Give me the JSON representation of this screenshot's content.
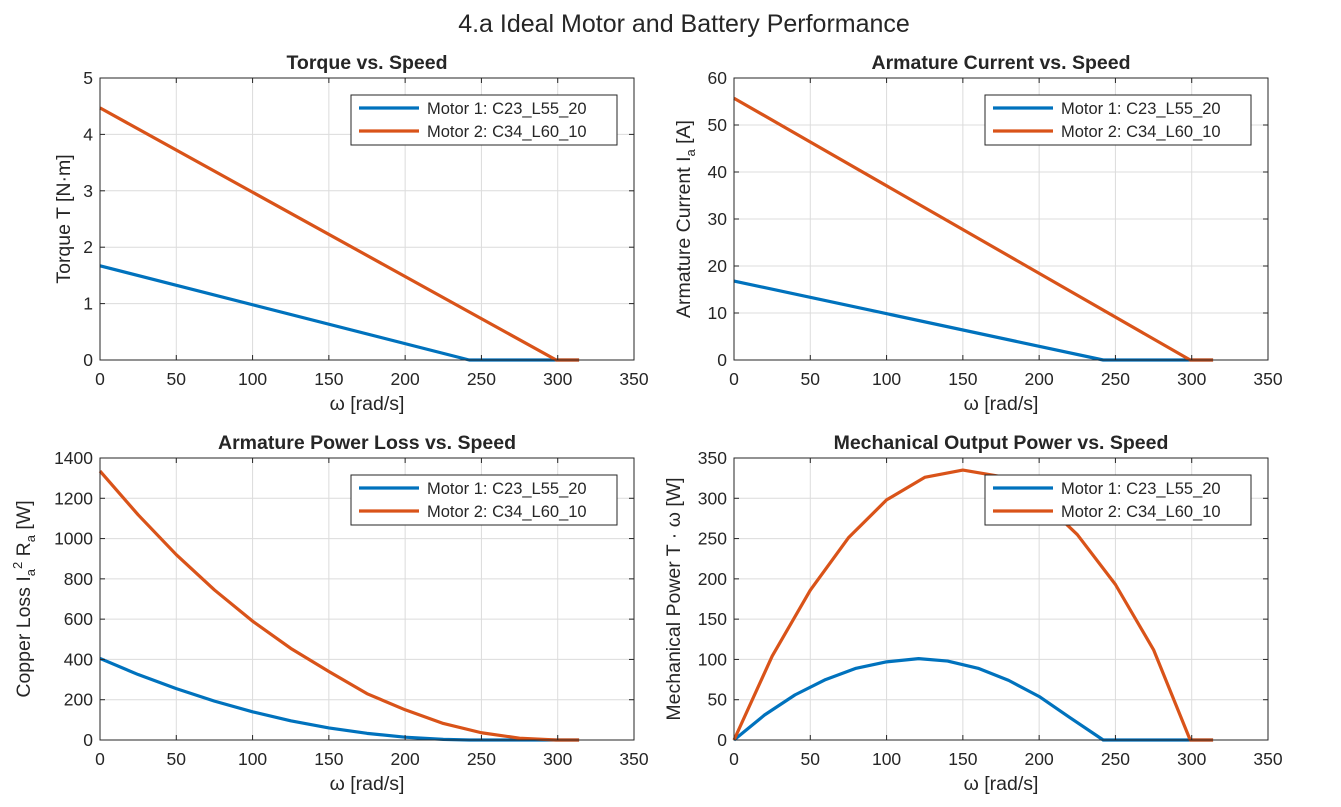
{
  "figure": {
    "suptitle": "4.a  Ideal Motor and Battery Performance",
    "series_colors": [
      "#0072BD",
      "#D95319"
    ],
    "legend": [
      "Motor  1:  C23_L55_20",
      "Motor  2:  C34_L60_10"
    ]
  },
  "chart_data": [
    {
      "type": "line",
      "title": "Torque vs. Speed",
      "xlabel": "ω   [rad/s]",
      "ylabel": "Torque  T  [N·m]",
      "xlim": [
        0,
        350
      ],
      "ylim": [
        0,
        5
      ],
      "xticks": [
        0,
        50,
        100,
        150,
        200,
        250,
        300,
        350
      ],
      "yticks": [
        0,
        1,
        2,
        3,
        4,
        5
      ],
      "grid": true,
      "legend_position": "top-right",
      "series": [
        {
          "name": "Motor  1:  C23_L55_20",
          "x": [
            0,
            242,
            314
          ],
          "y": [
            1.67,
            0,
            0
          ]
        },
        {
          "name": "Motor  2:  C34_L60_10",
          "x": [
            0,
            299,
            314
          ],
          "y": [
            4.47,
            0,
            0
          ]
        }
      ]
    },
    {
      "type": "line",
      "title": "Armature Current vs. Speed",
      "xlabel": "ω   [rad/s]",
      "ylabel": "Armature  Current   I_a   [A]",
      "xlim": [
        0,
        350
      ],
      "ylim": [
        0,
        60
      ],
      "xticks": [
        0,
        50,
        100,
        150,
        200,
        250,
        300,
        350
      ],
      "yticks": [
        0,
        10,
        20,
        30,
        40,
        50,
        60
      ],
      "grid": true,
      "legend_position": "top-right",
      "series": [
        {
          "name": "Motor  1:  C23_L55_20",
          "x": [
            0,
            242,
            314
          ],
          "y": [
            16.8,
            0,
            0
          ]
        },
        {
          "name": "Motor  2:  C34_L60_10",
          "x": [
            0,
            299,
            314
          ],
          "y": [
            55.7,
            0,
            0
          ]
        }
      ]
    },
    {
      "type": "line",
      "title": "Armature Power Loss vs. Speed",
      "xlabel": "ω   [rad/s]",
      "ylabel": "Copper  Loss   I_a² R_a   [W]",
      "xlim": [
        0,
        350
      ],
      "ylim": [
        0,
        1400
      ],
      "xticks": [
        0,
        50,
        100,
        150,
        200,
        250,
        300,
        350
      ],
      "yticks": [
        0,
        200,
        400,
        600,
        800,
        1000,
        1200,
        1400
      ],
      "grid": true,
      "legend_position": "top-right",
      "series": [
        {
          "name": "Motor  1:  C23_L55_20",
          "x": [
            0,
            25,
            50,
            75,
            100,
            125,
            150,
            175,
            200,
            225,
            242,
            314
          ],
          "y": [
            405,
            325,
            255,
            193,
            140,
            95,
            60,
            33,
            14,
            3,
            0,
            0
          ]
        },
        {
          "name": "Motor  2:  C34_L60_10",
          "x": [
            0,
            25,
            50,
            75,
            100,
            125,
            150,
            175,
            200,
            225,
            250,
            275,
            299,
            314
          ],
          "y": [
            1335,
            1118,
            920,
            745,
            590,
            455,
            340,
            230,
            150,
            82,
            36,
            9,
            0,
            0
          ]
        }
      ]
    },
    {
      "type": "line",
      "title": "Mechanical Output Power vs. Speed",
      "xlabel": "ω   [rad/s]",
      "ylabel": "Mechanical  Power    T · ω   [W]",
      "xlim": [
        0,
        350
      ],
      "ylim": [
        0,
        350
      ],
      "xticks": [
        0,
        50,
        100,
        150,
        200,
        250,
        300,
        350
      ],
      "yticks": [
        0,
        50,
        100,
        150,
        200,
        250,
        300,
        350
      ],
      "grid": true,
      "legend_position": "top-right",
      "series": [
        {
          "name": "Motor  1:  C23_L55_20",
          "x": [
            0,
            20,
            40,
            60,
            80,
            100,
            121,
            140,
            160,
            180,
            200,
            220,
            242,
            314
          ],
          "y": [
            0,
            31,
            56,
            75,
            89,
            97,
            101,
            98,
            89,
            74,
            54,
            28,
            0,
            0
          ]
        },
        {
          "name": "Motor  2:  C34_L60_10",
          "x": [
            0,
            25,
            50,
            75,
            100,
            125,
            150,
            175,
            200,
            225,
            250,
            275,
            299,
            314
          ],
          "y": [
            0,
            104,
            186,
            251,
            298,
            326,
            335,
            327,
            300,
            255,
            193,
            112,
            0,
            0
          ]
        }
      ]
    }
  ]
}
